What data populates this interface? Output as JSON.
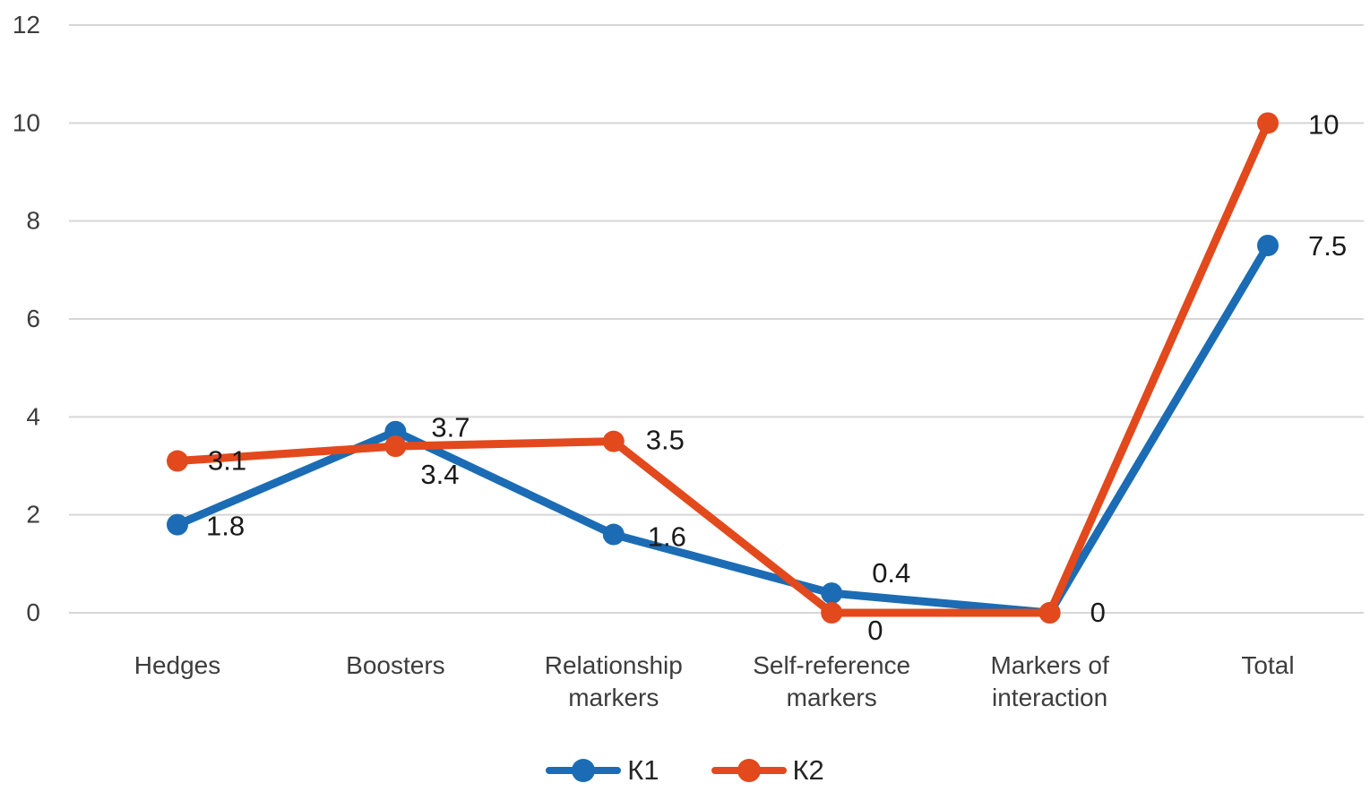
{
  "chart_data": {
    "type": "line",
    "title": "",
    "xlabel": "",
    "ylabel": "",
    "categories": [
      "Hedges",
      "Boosters",
      "Relationship markers",
      "Self-reference markers",
      "Markers of interaction",
      "Total"
    ],
    "category_label_lines": [
      [
        "Hedges"
      ],
      [
        "Boosters"
      ],
      [
        "Relationship",
        "markers"
      ],
      [
        "Self-reference",
        "markers"
      ],
      [
        "Markers of",
        "interaction"
      ],
      [
        "Total"
      ]
    ],
    "y_ticks": [
      0,
      2,
      4,
      6,
      8,
      10,
      12
    ],
    "ylim": [
      0,
      12
    ],
    "grid": true,
    "legend_position": "bottom",
    "series": [
      {
        "name": "К1",
        "color": "#1B6CB4",
        "values": [
          1.8,
          3.7,
          1.6,
          0.4,
          0,
          7.5
        ],
        "point_labels": [
          {
            "text": "1.8",
            "dx": 32,
            "dy": 12
          },
          {
            "text": "3.7",
            "dx": 40,
            "dy": 6
          },
          {
            "text": "1.6",
            "dx": 38,
            "dy": 13
          },
          {
            "text": "0.4",
            "dx": 45,
            "dy": -12
          },
          null,
          {
            "text": "7.5",
            "dx": 45,
            "dy": 11
          }
        ]
      },
      {
        "name": "К2",
        "color": "#E2491D",
        "values": [
          3.1,
          3.4,
          3.5,
          0,
          0,
          10
        ],
        "point_labels": [
          {
            "text": "3.1",
            "dx": 34,
            "dy": 10
          },
          {
            "text": "3.4",
            "dx": 28,
            "dy": 42
          },
          {
            "text": "3.5",
            "dx": 36,
            "dy": 9
          },
          {
            "text": "0",
            "dx": 40,
            "dy": 30
          },
          {
            "text": "0",
            "dx": 45,
            "dy": 10
          },
          {
            "text": "10",
            "dx": 45,
            "dy": 12
          }
        ]
      }
    ],
    "colors": {
      "gridline": "#D6D6D6",
      "axis_text": "#3D3D3D",
      "data_label_text": "#1A1A1A",
      "background": "#FFFFFF"
    }
  }
}
